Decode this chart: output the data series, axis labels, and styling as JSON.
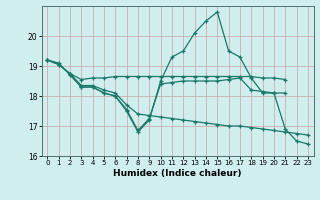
{
  "xlabel": "Humidex (Indice chaleur)",
  "xlim": [
    -0.5,
    23.5
  ],
  "ylim": [
    16,
    21
  ],
  "yticks": [
    16,
    17,
    18,
    19,
    20
  ],
  "xticks": [
    0,
    1,
    2,
    3,
    4,
    5,
    6,
    7,
    8,
    9,
    10,
    11,
    12,
    13,
    14,
    15,
    16,
    17,
    18,
    19,
    20,
    21,
    22,
    23
  ],
  "bg_color": "#d0eeee",
  "grid_color_major": "#c8b8b8",
  "grid_color_minor": "#c8d8d8",
  "line_color": "#1a7868",
  "lines": [
    {
      "x": [
        0,
        1,
        2,
        3,
        4,
        5,
        6,
        7,
        8,
        9,
        10,
        11,
        12,
        13,
        14,
        15,
        16,
        17,
        18,
        19,
        20,
        21,
        22,
        23
      ],
      "y": [
        19.2,
        19.1,
        18.7,
        18.3,
        18.3,
        18.1,
        18.0,
        17.5,
        16.8,
        17.2,
        18.5,
        19.3,
        19.5,
        20.1,
        20.5,
        20.8,
        19.5,
        19.3,
        18.6,
        18.1,
        18.1,
        16.9,
        16.5,
        16.4
      ]
    },
    {
      "x": [
        0,
        1,
        2,
        3,
        4,
        5,
        6,
        7,
        8,
        9,
        10,
        11,
        12,
        13,
        14,
        15,
        16,
        17,
        18,
        19,
        20,
        21
      ],
      "y": [
        19.2,
        19.05,
        18.75,
        18.55,
        18.6,
        18.6,
        18.65,
        18.65,
        18.65,
        18.65,
        18.65,
        18.65,
        18.65,
        18.65,
        18.65,
        18.65,
        18.65,
        18.65,
        18.65,
        18.6,
        18.6,
        18.55
      ]
    },
    {
      "x": [
        0,
        1,
        2,
        3,
        4,
        5,
        6,
        7,
        8,
        9,
        10,
        11,
        12,
        13,
        14,
        15,
        16,
        17,
        18,
        19,
        20,
        21,
        22,
        23
      ],
      "y": [
        19.2,
        19.05,
        18.75,
        18.35,
        18.35,
        18.2,
        18.1,
        17.7,
        17.4,
        17.35,
        17.3,
        17.25,
        17.2,
        17.15,
        17.1,
        17.05,
        17.0,
        17.0,
        16.95,
        16.9,
        16.85,
        16.8,
        16.75,
        16.7
      ]
    },
    {
      "x": [
        2,
        3,
        4,
        5,
        6,
        7,
        8,
        9,
        10,
        11,
        12,
        13,
        14,
        15,
        16,
        17,
        18,
        19,
        20,
        21
      ],
      "y": [
        18.75,
        18.3,
        18.3,
        18.1,
        18.0,
        17.55,
        16.85,
        17.25,
        18.4,
        18.45,
        18.5,
        18.5,
        18.5,
        18.5,
        18.55,
        18.6,
        18.2,
        18.15,
        18.1,
        18.1
      ]
    }
  ]
}
